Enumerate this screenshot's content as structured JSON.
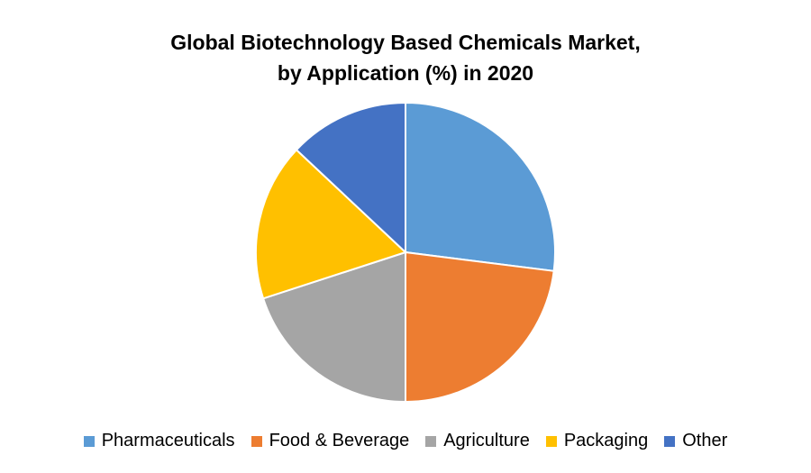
{
  "chart_data": {
    "type": "pie",
    "title": [
      "Global Biotechnology Based Chemicals Market,",
      "by Application (%) in 2020"
    ],
    "categories": [
      "Pharmaceuticals",
      "Food & Beverage",
      "Agriculture",
      "Packaging",
      "Other"
    ],
    "values": [
      27,
      23,
      20,
      17,
      13
    ],
    "colors": [
      "#5b9bd5",
      "#ed7d31",
      "#a5a5a5",
      "#ffc000",
      "#4472c4"
    ],
    "legend": "bottom"
  }
}
